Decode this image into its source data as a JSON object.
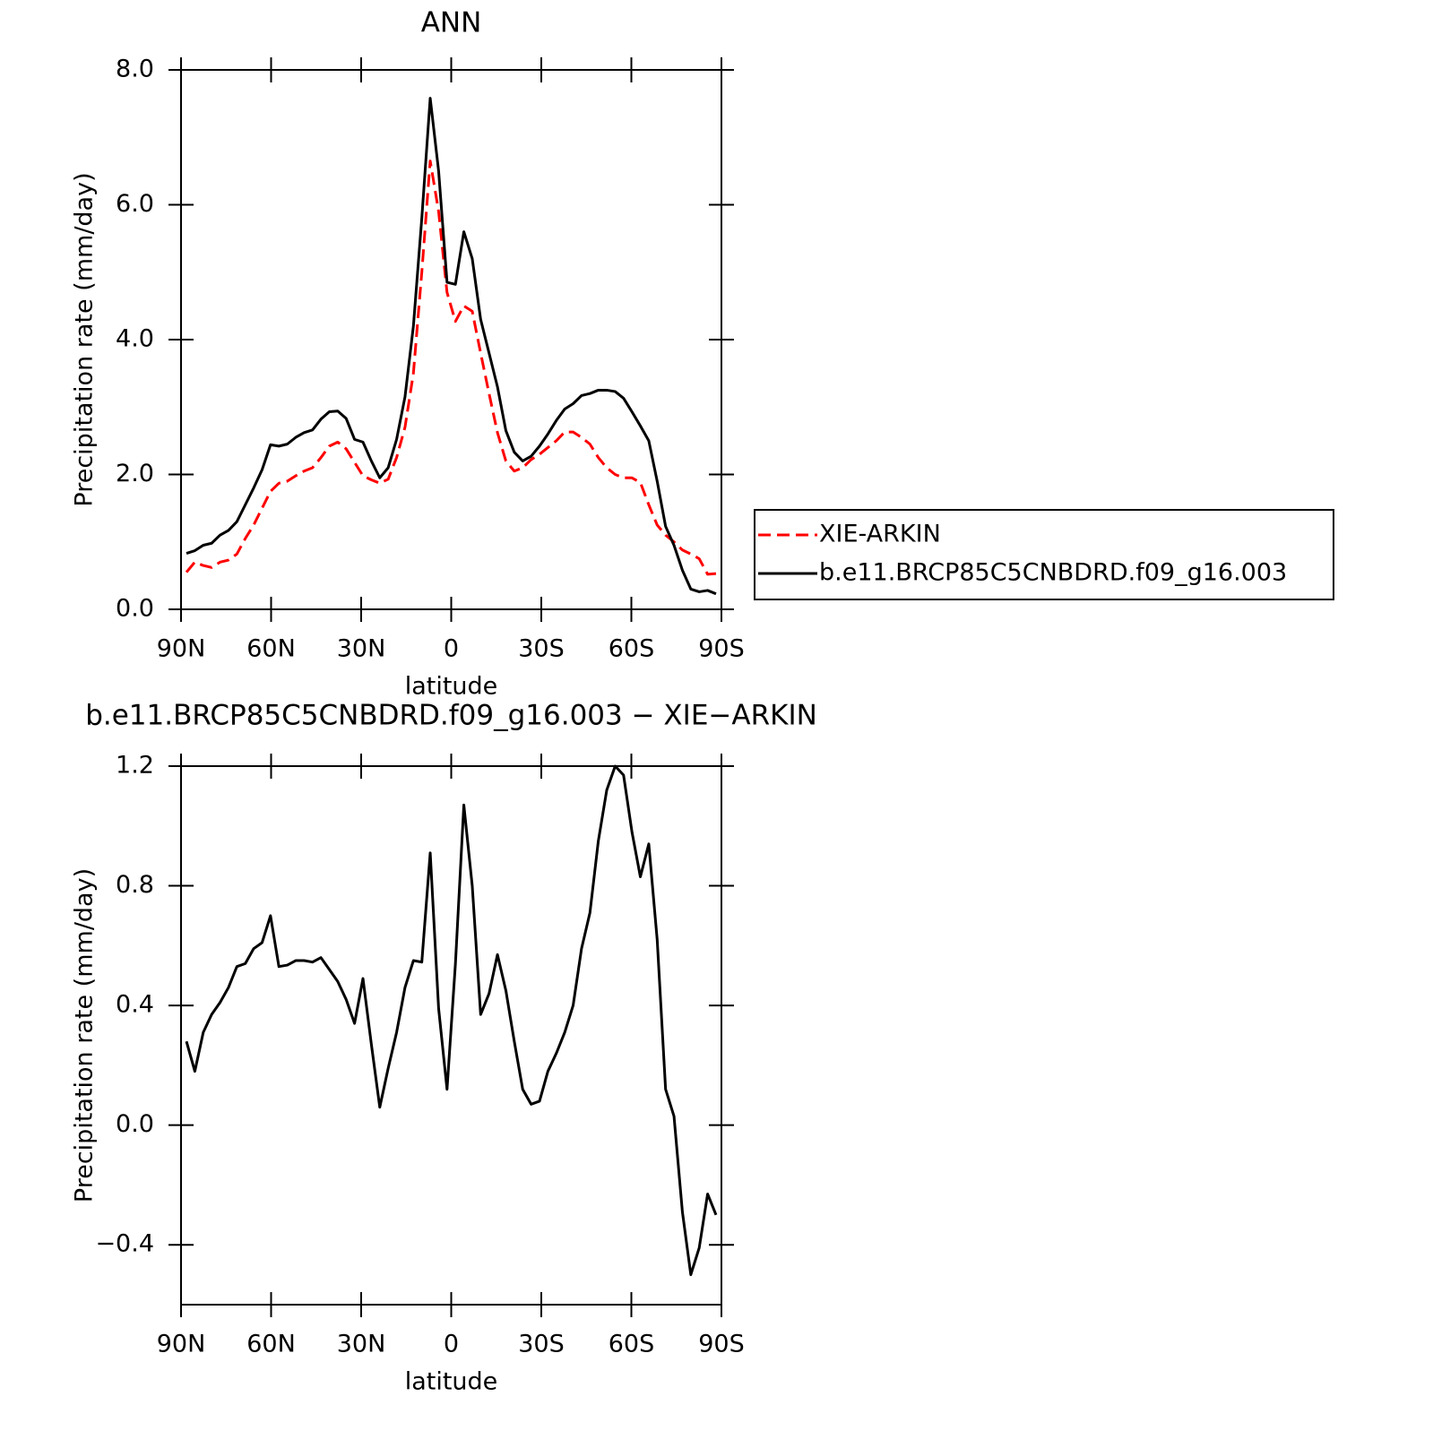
{
  "chart_data": [
    {
      "type": "line",
      "title": "ANN",
      "x_label": "latitude",
      "y_label": "Precipitation rate (mm/day)",
      "x": [
        88.2,
        85.4,
        82.6,
        79.8,
        77,
        74.2,
        71.4,
        68.6,
        65.8,
        63,
        60.2,
        57.4,
        54.6,
        51.8,
        49,
        46.2,
        43.4,
        40.6,
        37.8,
        35,
        32.2,
        29.4,
        26.6,
        23.8,
        21,
        18.2,
        15.4,
        12.6,
        9.8,
        7,
        4.2,
        1.4,
        -1.4,
        -4.2,
        -7,
        -9.8,
        -12.6,
        -15.4,
        -18.2,
        -21,
        -23.8,
        -26.6,
        -29.4,
        -32.2,
        -35,
        -37.8,
        -40.6,
        -43.4,
        -46.2,
        -49,
        -51.8,
        -54.6,
        -57.4,
        -60.2,
        -63,
        -65.8,
        -68.6,
        -71.4,
        -74.2,
        -77,
        -79.8,
        -82.6,
        -85.4,
        -88.2
      ],
      "series": [
        {
          "name": "XIE-ARKIN",
          "color": "#ff0000",
          "line_style": "dashed",
          "values": [
            0.55,
            0.7,
            0.65,
            0.62,
            0.7,
            0.73,
            0.82,
            1.05,
            1.25,
            1.5,
            1.75,
            1.87,
            1.9,
            1.98,
            2.05,
            2.1,
            2.25,
            2.42,
            2.48,
            2.38,
            2.18,
            1.98,
            1.92,
            1.87,
            1.93,
            2.25,
            2.7,
            3.5,
            5.0,
            6.65,
            5.9,
            4.7,
            4.27,
            4.5,
            4.42,
            3.8,
            3.2,
            2.62,
            2.2,
            2.05,
            2.1,
            2.22,
            2.3,
            2.4,
            2.5,
            2.63,
            2.63,
            2.55,
            2.45,
            2.25,
            2.1,
            2.0,
            1.95,
            1.95,
            1.88,
            1.55,
            1.25,
            1.1,
            1.0,
            0.88,
            0.82,
            0.75,
            0.52,
            0.53
          ]
        },
        {
          "name": "b.e11.BRCP85C5CNBDRD.f09_g16.003",
          "color": "#000000",
          "line_style": "solid",
          "values": [
            0.83,
            0.87,
            0.95,
            0.98,
            1.1,
            1.17,
            1.3,
            1.55,
            1.8,
            2.07,
            2.44,
            2.42,
            2.45,
            2.55,
            2.62,
            2.66,
            2.82,
            2.93,
            2.94,
            2.83,
            2.52,
            2.48,
            2.2,
            1.95,
            2.1,
            2.52,
            3.15,
            4.2,
            5.8,
            7.58,
            6.5,
            4.85,
            4.82,
            5.6,
            5.2,
            4.3,
            3.8,
            3.3,
            2.65,
            2.33,
            2.2,
            2.27,
            2.42,
            2.6,
            2.8,
            2.97,
            3.05,
            3.17,
            3.2,
            3.25,
            3.25,
            3.23,
            3.13,
            2.93,
            2.72,
            2.5,
            1.9,
            1.23,
            0.95,
            0.58,
            0.3,
            0.26,
            0.28,
            0.23
          ]
        }
      ],
      "xlim": [
        90,
        -90
      ],
      "xticks": [
        {
          "value": 90,
          "label": "90N"
        },
        {
          "value": 60,
          "label": "60N"
        },
        {
          "value": 30,
          "label": "30N"
        },
        0,
        {
          "value": -30,
          "label": "30S"
        },
        {
          "value": -60,
          "label": "60S"
        },
        {
          "value": -90,
          "label": "90S"
        }
      ],
      "ylim": [
        0,
        8
      ],
      "yticks": [
        {
          "value": 0,
          "label": "0.0"
        },
        {
          "value": 2,
          "label": "2.0"
        },
        {
          "value": 4,
          "label": "4.0"
        },
        {
          "value": 6,
          "label": "6.0"
        },
        {
          "value": 8,
          "label": "8.0"
        }
      ],
      "grid": false,
      "legend": "right"
    },
    {
      "type": "line",
      "title": "b.e11.BRCP85C5CNBDRD.f09_g16.003 − XIE−ARKIN",
      "x_label": "latitude",
      "y_label": "Precipitation rate (mm/day)",
      "x": [
        88.2,
        85.4,
        82.6,
        79.8,
        77,
        74.2,
        71.4,
        68.6,
        65.8,
        63,
        60.2,
        57.4,
        54.6,
        51.8,
        49,
        46.2,
        43.4,
        40.6,
        37.8,
        35,
        32.2,
        29.4,
        26.6,
        23.8,
        21,
        18.2,
        15.4,
        12.6,
        9.8,
        7,
        4.2,
        1.4,
        -1.4,
        -4.2,
        -7,
        -9.8,
        -12.6,
        -15.4,
        -18.2,
        -21,
        -23.8,
        -26.6,
        -29.4,
        -32.2,
        -35,
        -37.8,
        -40.6,
        -43.4,
        -46.2,
        -49,
        -51.8,
        -54.6,
        -57.4,
        -60.2,
        -63,
        -65.8,
        -68.6,
        -71.4,
        -74.2,
        -77,
        -79.8,
        -82.6,
        -85.4,
        -88.2
      ],
      "color": "#000000",
      "values": [
        0.28,
        0.18,
        0.31,
        0.37,
        0.41,
        0.46,
        0.53,
        0.54,
        0.59,
        0.61,
        0.7,
        0.53,
        0.535,
        0.55,
        0.55,
        0.545,
        0.56,
        0.52,
        0.48,
        0.42,
        0.34,
        0.49,
        0.27,
        0.06,
        0.19,
        0.31,
        0.46,
        0.55,
        0.545,
        0.91,
        0.39,
        0.12,
        0.54,
        1.07,
        0.8,
        0.37,
        0.44,
        0.57,
        0.45,
        0.28,
        0.12,
        0.07,
        0.08,
        0.18,
        0.24,
        0.31,
        0.4,
        0.59,
        0.71,
        0.95,
        1.12,
        1.2,
        1.17,
        0.98,
        0.83,
        0.94,
        0.62,
        0.12,
        0.03,
        -0.29,
        -0.5,
        -0.41,
        -0.23,
        -0.3
      ],
      "xlim": [
        90,
        -90
      ],
      "xticks": [
        {
          "value": 90,
          "label": "90N"
        },
        {
          "value": 60,
          "label": "60N"
        },
        {
          "value": 30,
          "label": "30N"
        },
        0,
        {
          "value": -30,
          "label": "30S"
        },
        {
          "value": -60,
          "label": "60S"
        },
        {
          "value": -90,
          "label": "90S"
        }
      ],
      "ylim": [
        -0.6,
        1.2
      ],
      "yticks": [
        {
          "value": -0.4,
          "label": "−0.4"
        },
        {
          "value": 0,
          "label": "0.0"
        },
        {
          "value": 0.4,
          "label": "0.4"
        },
        {
          "value": 0.8,
          "label": "0.8"
        },
        {
          "value": 1.2,
          "label": "1.2"
        }
      ],
      "grid": false
    }
  ]
}
